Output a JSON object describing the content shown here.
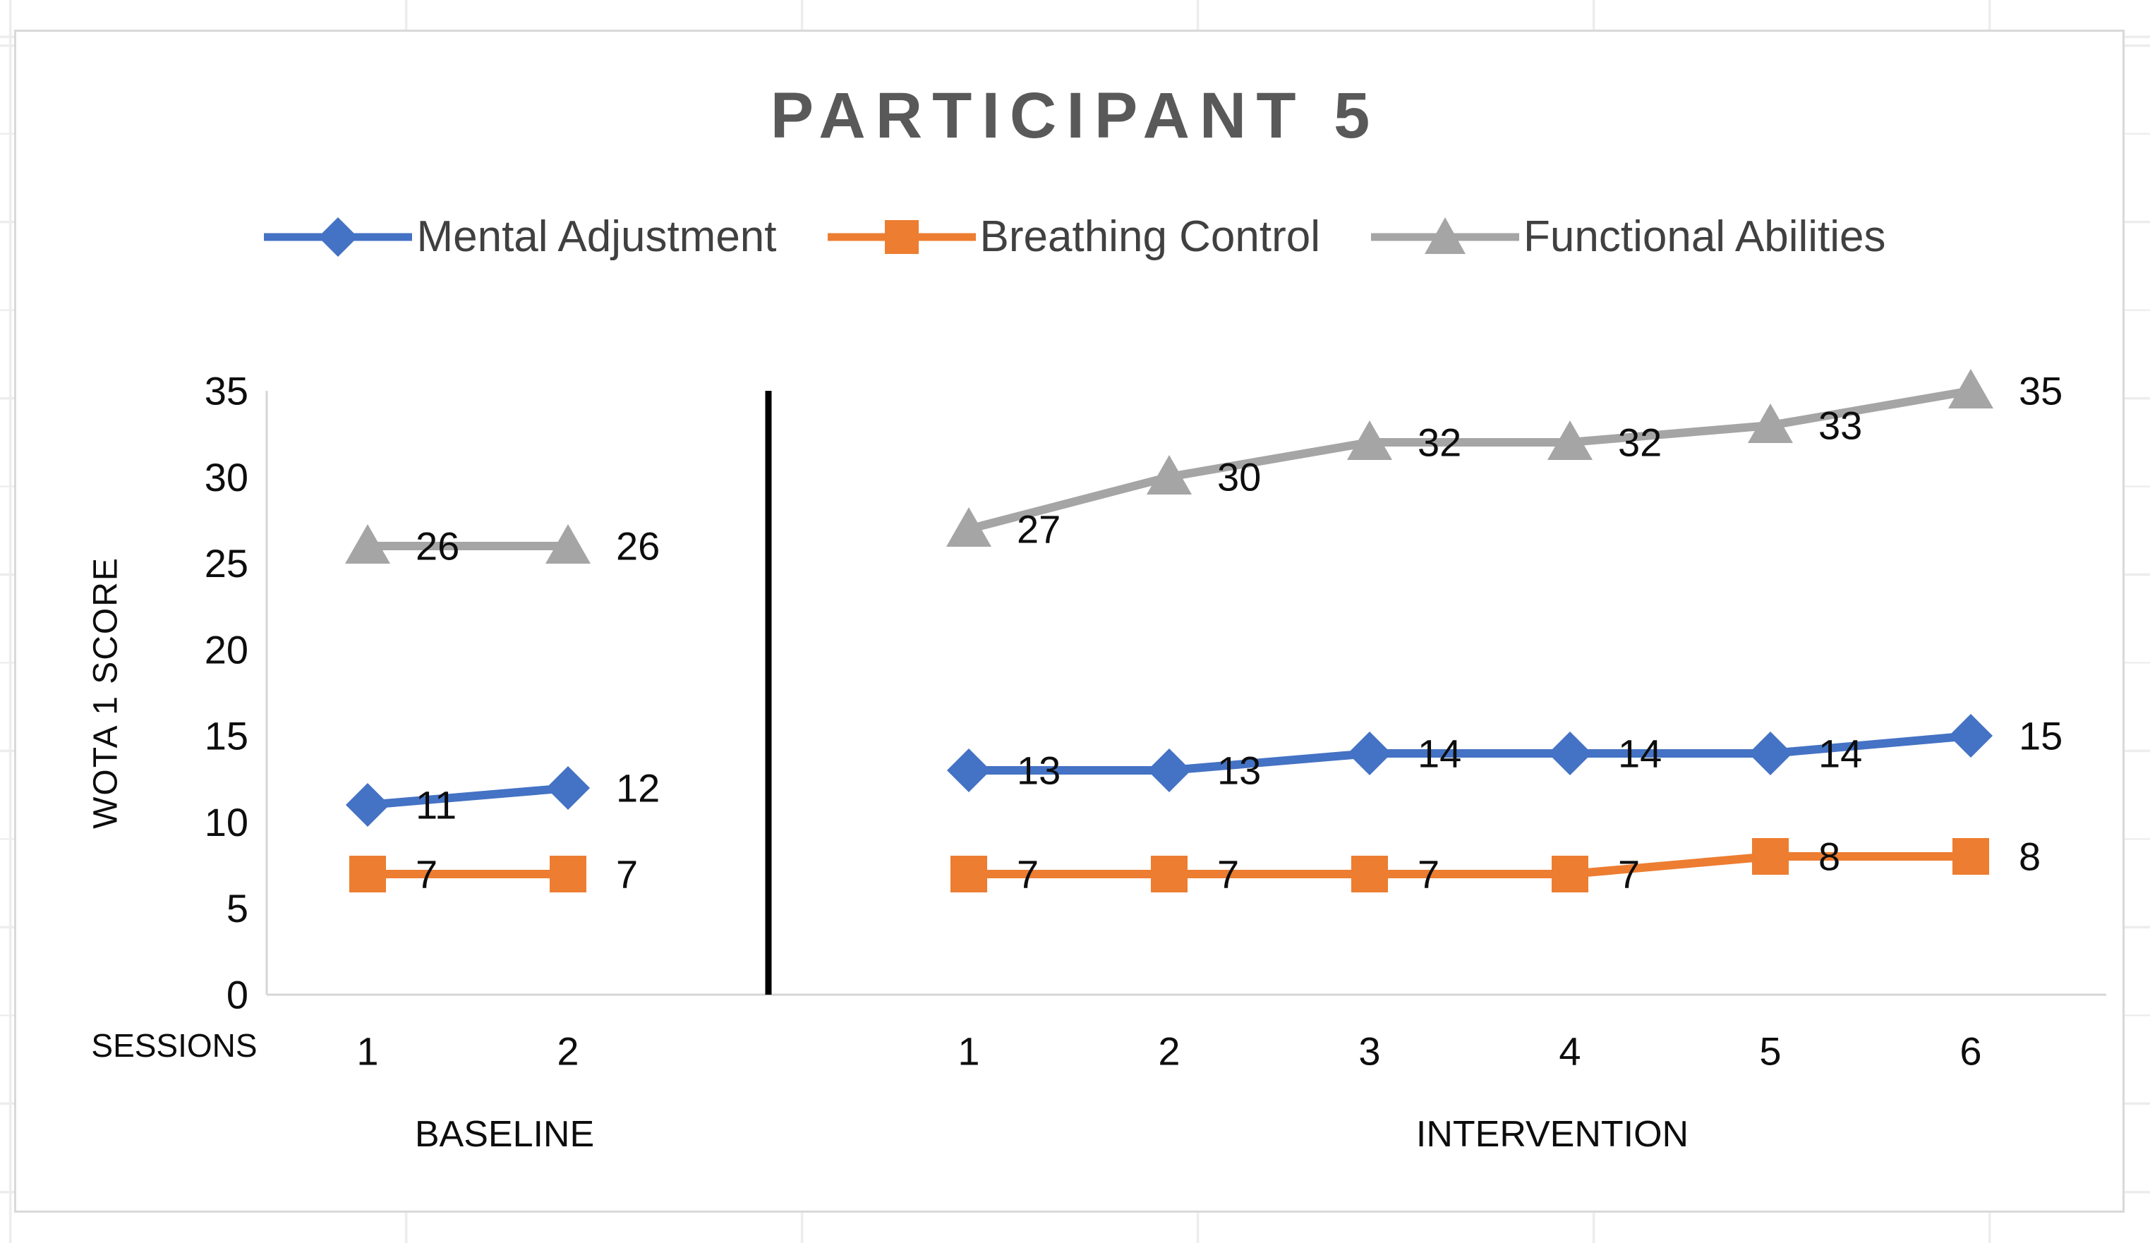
{
  "chart_data": {
    "type": "line",
    "title": "PARTICIPANT 5",
    "ylabel": "WOTA 1 SCORE",
    "xlabel": "SESSIONS",
    "ylim": [
      0,
      35
    ],
    "yticks": [
      0,
      5,
      10,
      15,
      20,
      25,
      30,
      35
    ],
    "grid": false,
    "legend_position": "top",
    "data_labels": "right",
    "phase_divider": true,
    "phases": [
      {
        "label": "BASELINE",
        "sessions": [
          "1",
          "2"
        ]
      },
      {
        "label": "INTERVENTION",
        "sessions": [
          "1",
          "2",
          "3",
          "4",
          "5",
          "6"
        ]
      }
    ],
    "series": [
      {
        "name": "Mental Adjustment",
        "color": "#4472C4",
        "marker": "diamond",
        "values": [
          [
            11,
            12
          ],
          [
            13,
            13,
            14,
            14,
            14,
            15
          ]
        ]
      },
      {
        "name": "Breathing Control",
        "color": "#ED7D31",
        "marker": "square",
        "values": [
          [
            7,
            7
          ],
          [
            7,
            7,
            7,
            7,
            8,
            8
          ]
        ]
      },
      {
        "name": "Functional Abilities",
        "color": "#A5A5A5",
        "marker": "triangle",
        "values": [
          [
            26,
            26
          ],
          [
            27,
            30,
            32,
            32,
            33,
            35
          ]
        ]
      }
    ],
    "colors": {
      "title": "#595959",
      "axis_line": "#D6D6D6",
      "divider": "#000000",
      "label_text": "#0d0d0d",
      "legend_text": "#404040"
    }
  }
}
